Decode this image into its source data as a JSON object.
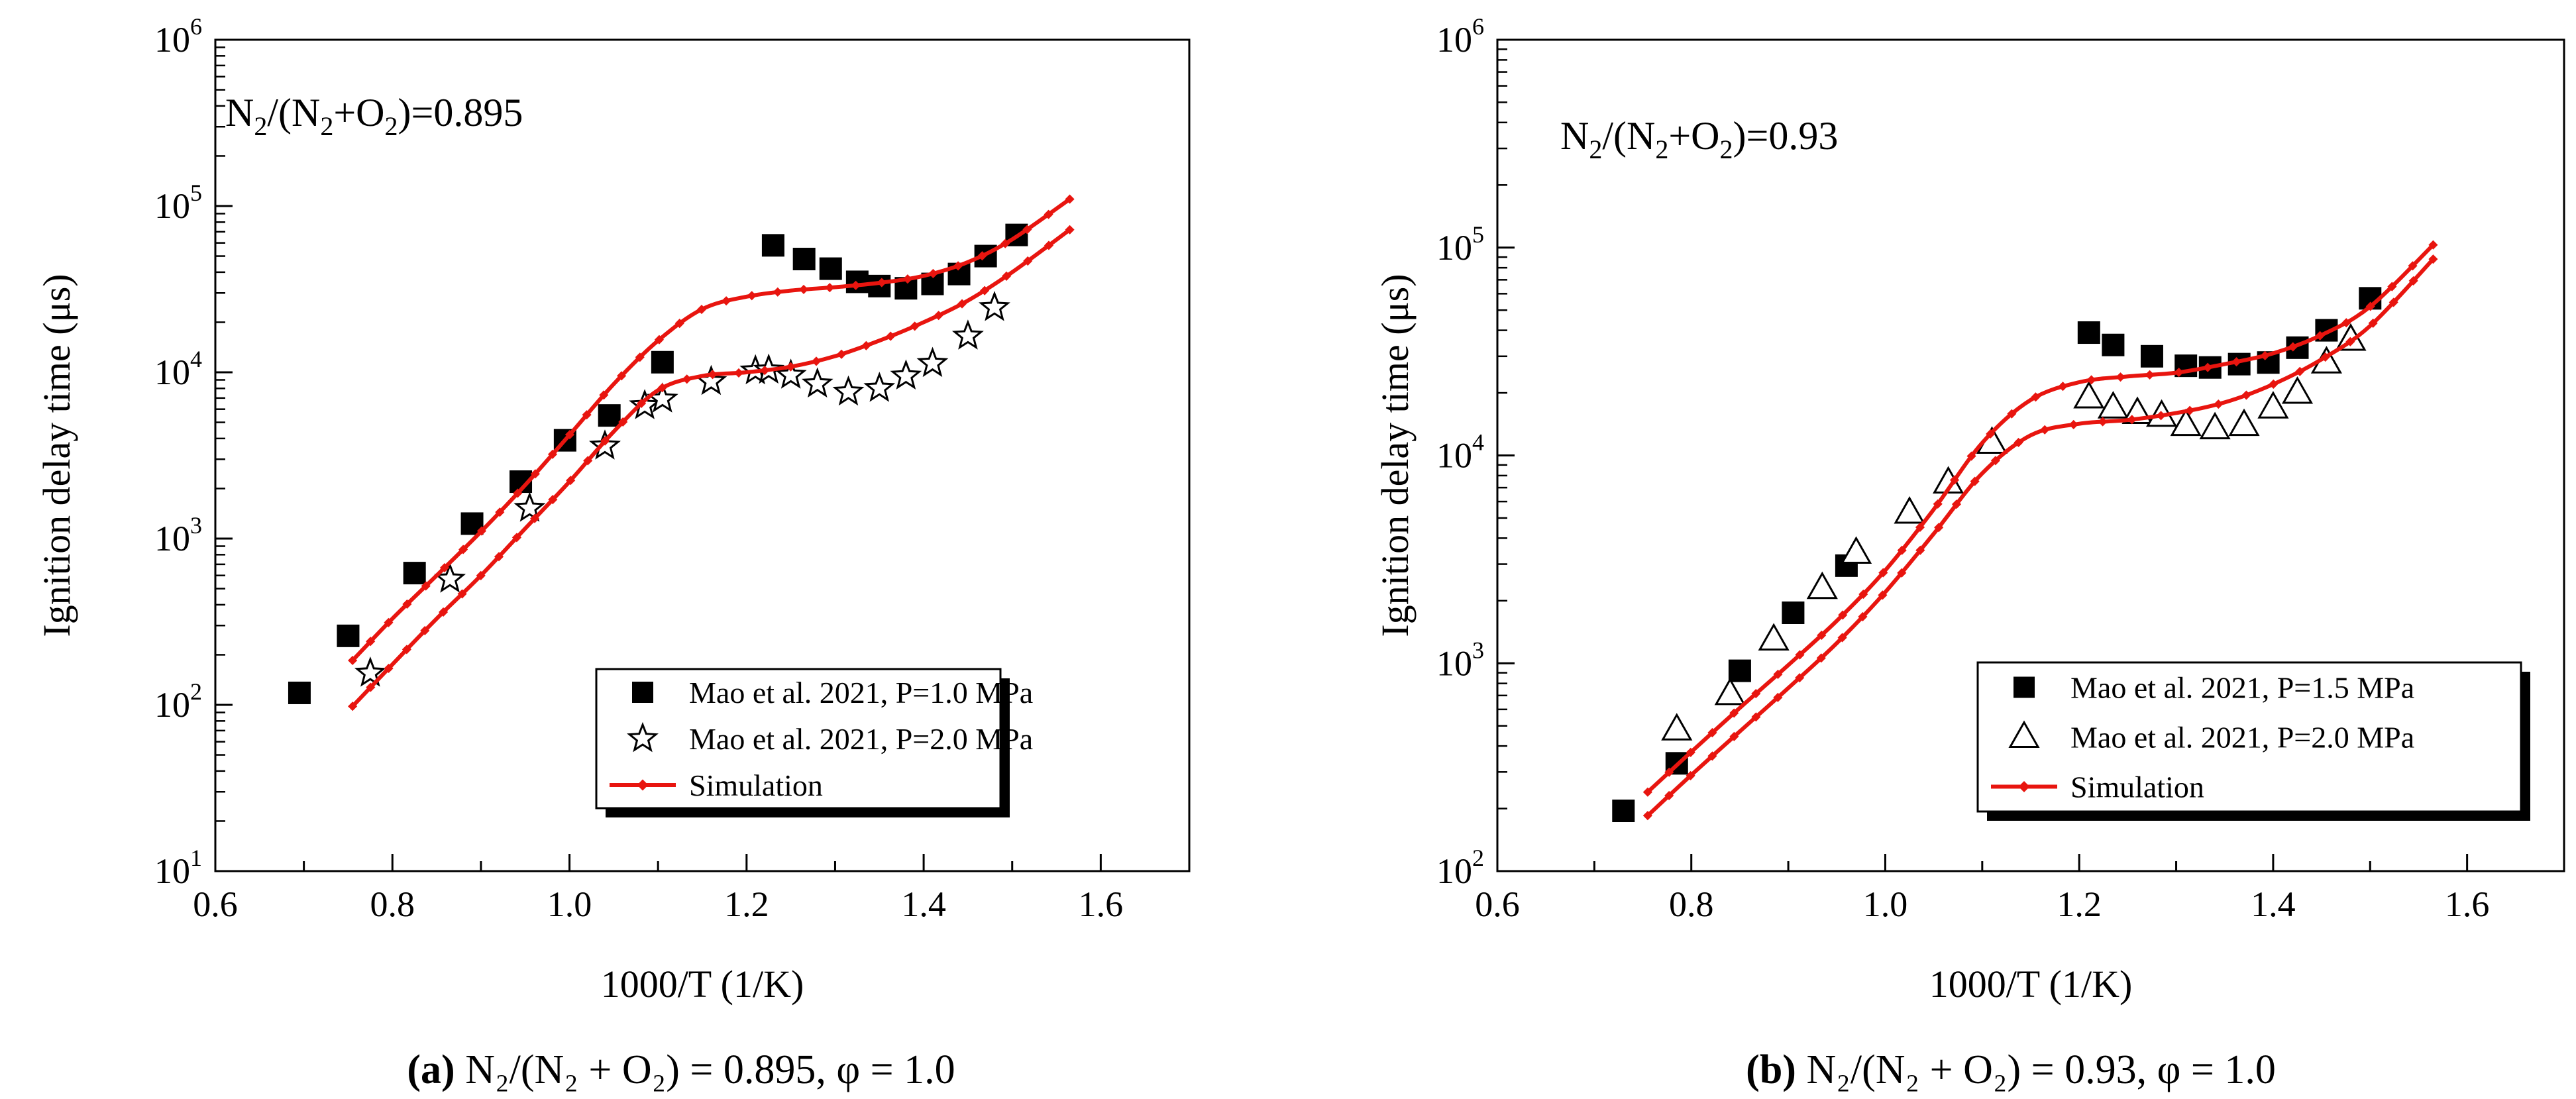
{
  "figure": {
    "captions": [
      {
        "letter": "(a)",
        "text": " N₂/(N₂ + O₂) = 0.895, φ = 1.0"
      },
      {
        "letter": "(b)",
        "text": " N₂/(N₂ + O₂) = 0.93, φ = 1.0"
      }
    ]
  },
  "chart_data": [
    {
      "type": "scatter+line",
      "xlabel": "1000/T (1/K)",
      "ylabel": "Ignition delay time (μs)",
      "xlim": [
        0.6,
        1.7
      ],
      "ylim_log10": [
        1,
        6
      ],
      "yscale": "log",
      "xticks": [
        "0.6",
        "0.8",
        "1.0",
        "1.2",
        "1.4",
        "1.6"
      ],
      "yticks": [
        {
          "base": "10",
          "exp": "1"
        },
        {
          "base": "10",
          "exp": "2"
        },
        {
          "base": "10",
          "exp": "3"
        },
        {
          "base": "10",
          "exp": "4"
        },
        {
          "base": "10",
          "exp": "5"
        },
        {
          "base": "10",
          "exp": "6"
        }
      ],
      "annotation": {
        "prefix": "N",
        "s1": "2",
        "mid": "/(N",
        "s2": "2",
        "plus": "+O",
        "s3": "2",
        "suffix": ")=0.895"
      },
      "legend_position": "bottom-right",
      "series": [
        {
          "name": "Mao et al. 2021, P=1.0 MPa",
          "marker": "square",
          "x": [
            0.695,
            0.75,
            0.825,
            0.89,
            0.945,
            0.995,
            1.045,
            1.105,
            1.23,
            1.265,
            1.295,
            1.325,
            1.35,
            1.38,
            1.41,
            1.44,
            1.47,
            1.505
          ],
          "y": [
            118,
            260,
            620,
            1230,
            2200,
            3900,
            5500,
            11500,
            58000,
            48000,
            42000,
            35000,
            33000,
            32000,
            34000,
            39000,
            50000,
            67000
          ]
        },
        {
          "name": "Mao et al. 2021, P=2.0 MPa",
          "marker": "star",
          "x": [
            0.775,
            0.865,
            0.955,
            1.04,
            1.085,
            1.105,
            1.16,
            1.21,
            1.225,
            1.25,
            1.28,
            1.315,
            1.35,
            1.38,
            1.41,
            1.45,
            1.48
          ],
          "y": [
            155,
            570,
            1520,
            3600,
            6300,
            6900,
            8800,
            10200,
            10300,
            9600,
            8500,
            7600,
            8000,
            9500,
            11300,
            16500,
            24500
          ]
        },
        {
          "name": "Simulation",
          "marker": "diamond-line",
          "color": "#e8150f",
          "x": [
            0.755,
            0.8,
            0.85,
            0.9,
            0.95,
            1.0,
            1.05,
            1.1,
            1.15,
            1.2,
            1.25,
            1.3,
            1.35,
            1.4,
            1.45,
            1.5,
            1.565
          ],
          "y": [
            185,
            330,
            600,
            1100,
            2100,
            4200,
            8500,
            15500,
            24000,
            28500,
            31000,
            32500,
            34500,
            38000,
            46000,
            63000,
            110000
          ]
        },
        {
          "name": "Simulation",
          "marker": "diamond-line",
          "color": "#e8150f",
          "legend": false,
          "x": [
            0.755,
            0.8,
            0.85,
            0.9,
            0.95,
            1.0,
            1.05,
            1.1,
            1.15,
            1.2,
            1.25,
            1.3,
            1.35,
            1.4,
            1.45,
            1.5,
            1.565
          ],
          "y": [
            98,
            175,
            330,
            600,
            1150,
            2200,
            4400,
            7800,
            9500,
            10000,
            10800,
            12500,
            15500,
            20000,
            27000,
            40000,
            72000
          ]
        }
      ]
    },
    {
      "type": "scatter+line",
      "xlabel": "1000/T (1/K)",
      "ylabel": "Ignition delay time (μs)",
      "xlim": [
        0.6,
        1.7
      ],
      "ylim_log10": [
        2,
        6
      ],
      "yscale": "log",
      "xticks": [
        "0.6",
        "0.8",
        "1.0",
        "1.2",
        "1.4",
        "1.6"
      ],
      "yticks": [
        {
          "base": "10",
          "exp": "2"
        },
        {
          "base": "10",
          "exp": "3"
        },
        {
          "base": "10",
          "exp": "4"
        },
        {
          "base": "10",
          "exp": "5"
        },
        {
          "base": "10",
          "exp": "6"
        }
      ],
      "annotation": {
        "prefix": "N",
        "s1": "2",
        "mid": "/(N",
        "s2": "2",
        "plus": "+O",
        "s3": "2",
        "suffix": ")=0.93"
      },
      "legend_position": "bottom-right",
      "series": [
        {
          "name": "Mao et al. 2021, P=1.5 MPa",
          "marker": "square",
          "x": [
            0.73,
            0.785,
            0.85,
            0.905,
            0.96,
            1.21,
            1.235,
            1.275,
            1.31,
            1.335,
            1.365,
            1.395,
            1.425,
            1.455,
            1.5
          ],
          "y": [
            195,
            330,
            920,
            1750,
            2950,
            39000,
            34000,
            30000,
            27000,
            26500,
            27500,
            28000,
            33000,
            40000,
            57000
          ]
        },
        {
          "name": "Mao et al. 2021, P=2.0 MPa",
          "marker": "triangle",
          "x": [
            0.785,
            0.84,
            0.885,
            0.935,
            0.97,
            1.025,
            1.065,
            1.11,
            1.21,
            1.235,
            1.26,
            1.285,
            1.31,
            1.34,
            1.37,
            1.4,
            1.425,
            1.455,
            1.48
          ],
          "y": [
            480,
            710,
            1300,
            2300,
            3400,
            5300,
            7400,
            11500,
            19000,
            17000,
            16000,
            15500,
            14000,
            13500,
            14000,
            17000,
            20000,
            28000,
            36000
          ]
        },
        {
          "name": "Simulation",
          "marker": "diamond-line",
          "color": "#e8150f",
          "x": [
            0.755,
            0.8,
            0.85,
            0.9,
            0.95,
            1.0,
            1.05,
            1.1,
            1.15,
            1.2,
            1.25,
            1.3,
            1.35,
            1.4,
            1.45,
            1.5,
            1.565
          ],
          "y": [
            240,
            375,
            610,
            980,
            1600,
            2800,
            5500,
            11500,
            18500,
            22500,
            24000,
            25000,
            27500,
            31000,
            38000,
            52000,
            103000
          ]
        },
        {
          "name": "Simulation",
          "marker": "diamond-line",
          "color": "#e8150f",
          "legend": false,
          "x": [
            0.755,
            0.8,
            0.85,
            0.9,
            0.95,
            1.0,
            1.05,
            1.1,
            1.15,
            1.2,
            1.25,
            1.3,
            1.35,
            1.4,
            1.45,
            1.5,
            1.565
          ],
          "y": [
            185,
            290,
            470,
            760,
            1250,
            2200,
            4200,
            8200,
            12500,
            14200,
            14800,
            16000,
            18000,
            22000,
            29000,
            42000,
            88000
          ]
        }
      ]
    }
  ]
}
